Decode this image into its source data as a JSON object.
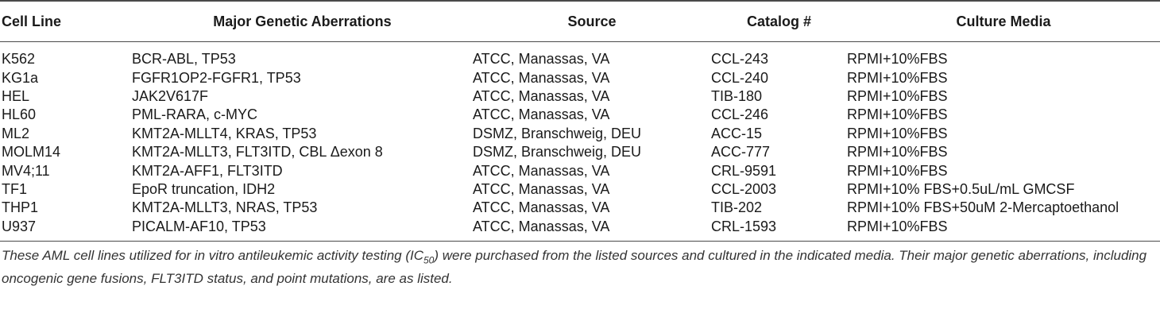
{
  "table": {
    "headers": [
      "Cell Line",
      "Major Genetic Aberrations",
      "Source",
      "Catalog #",
      "Culture Media"
    ],
    "rows": [
      [
        "K562",
        "BCR-ABL, TP53",
        "ATCC, Manassas, VA",
        "CCL-243",
        "RPMI+10%FBS"
      ],
      [
        "KG1a",
        "FGFR1OP2-FGFR1, TP53",
        "ATCC, Manassas, VA",
        "CCL-240",
        "RPMI+10%FBS"
      ],
      [
        "HEL",
        "JAK2V617F",
        "ATCC, Manassas, VA",
        "TIB-180",
        "RPMI+10%FBS"
      ],
      [
        "HL60",
        "PML-RARA, c-MYC",
        "ATCC, Manassas, VA",
        "CCL-246",
        "RPMI+10%FBS"
      ],
      [
        "ML2",
        "KMT2A-MLLT4, KRAS, TP53",
        "DSMZ, Branschweig, DEU",
        "ACC-15",
        "RPMI+10%FBS"
      ],
      [
        "MOLM14",
        "KMT2A-MLLT3, FLT3ITD, CBL Δexon 8",
        "DSMZ, Branschweig, DEU",
        "ACC-777",
        "RPMI+10%FBS"
      ],
      [
        "MV4;11",
        "KMT2A-AFF1, FLT3ITD",
        "ATCC, Manassas, VA",
        "CRL-9591",
        "RPMI+10%FBS"
      ],
      [
        "TF1",
        "EpoR truncation, IDH2",
        "ATCC, Manassas, VA",
        "CCL-2003",
        "RPMI+10% FBS+0.5uL/mL GMCSF"
      ],
      [
        "THP1",
        "KMT2A-MLLT3, NRAS, TP53",
        "ATCC, Manassas, VA",
        "TIB-202",
        "RPMI+10% FBS+50uM 2-Mercaptoethanol"
      ],
      [
        "U937",
        "PICALM-AF10, TP53",
        "ATCC, Manassas, VA",
        "CRL-1593",
        "RPMI+10%FBS"
      ]
    ]
  },
  "caption": {
    "part1": "These AML cell lines utilized for in vitro antileukemic activity testing (IC",
    "sub": "50",
    "part2": ") were purchased from the listed sources and cultured in the indicated media. Their major genetic aberrations, including oncogenic gene fusions, FLT3ITD status, and point mutations, are as listed."
  }
}
